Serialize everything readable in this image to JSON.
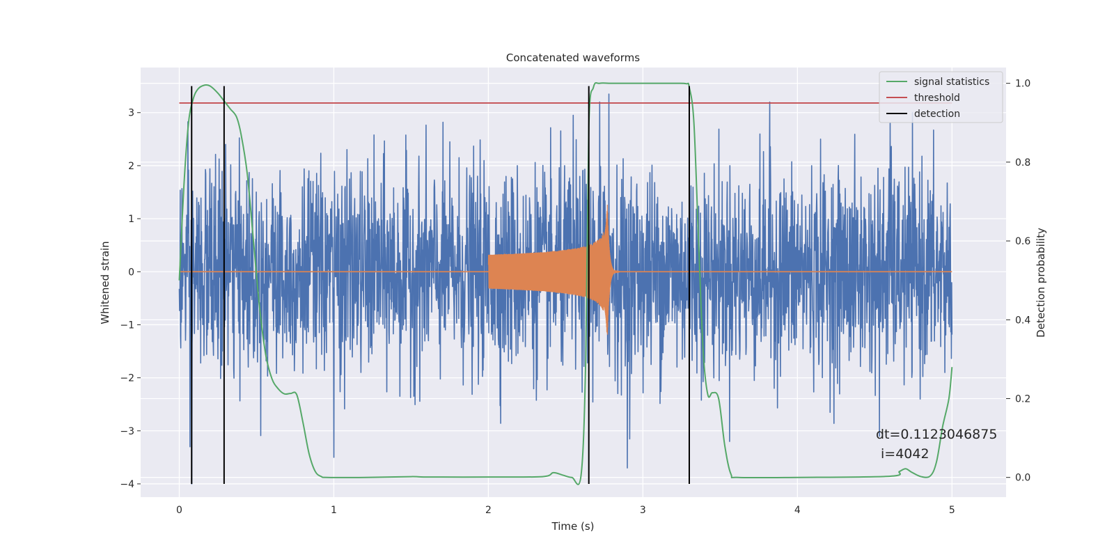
{
  "chart_data": {
    "type": "line",
    "title": "Concatenated waveforms",
    "xlabel": "Time (s)",
    "ylabel": "Whitened strain",
    "y2label": "Detection probability",
    "xlim": [
      -0.25,
      5.35
    ],
    "ylim": [
      -4.25,
      3.85
    ],
    "y2lim": [
      -0.05,
      1.04
    ],
    "xticks": [
      0,
      1,
      2,
      3,
      4,
      5
    ],
    "yticks": [
      -4,
      -3,
      -2,
      -1,
      0,
      1,
      2,
      3
    ],
    "y2ticks": [
      0.0,
      0.2,
      0.4,
      0.6,
      0.8,
      1.0
    ],
    "y2tick_labels": [
      "0.0",
      "0.2",
      "0.4",
      "0.6",
      "0.8",
      "1.0"
    ],
    "grid": true,
    "legend_position": "top-right",
    "colors": {
      "background": "#eaeaf2",
      "strain": "#4c72b0",
      "injection": "#dd8452",
      "signal_statistics": "#55a868",
      "threshold": "#c44e52",
      "detection": "#000000"
    },
    "series": [
      {
        "key": "strain",
        "axis": "left",
        "x_range": [
          0,
          5
        ],
        "rms": 0.95,
        "notable_peaks": [
          [
            0.08,
            -4.0
          ],
          [
            0.07,
            -3.3
          ],
          [
            0.3,
            2.4
          ],
          [
            1.0,
            -3.5
          ],
          [
            2.55,
            2.95
          ],
          [
            2.72,
            3.2
          ],
          [
            2.78,
            3.35
          ],
          [
            2.9,
            -3.7
          ],
          [
            3.82,
            3.2
          ],
          [
            4.53,
            -3.1
          ],
          [
            4.6,
            2.8
          ]
        ]
      },
      {
        "key": "injection",
        "axis": "left",
        "x_range": [
          2.0,
          2.8
        ],
        "chirp": {
          "start_time": 2.0,
          "merger_time": 2.77,
          "ringdown_end": 2.85,
          "start_amplitude": 0.32,
          "peak_amplitude": 1.3
        }
      },
      {
        "key": "signal_statistics",
        "name": "signal statistics",
        "axis": "right",
        "x": [
          0.0,
          0.03,
          0.06,
          0.09,
          0.12,
          0.16,
          0.2,
          0.25,
          0.29,
          0.33,
          0.37,
          0.4,
          0.44,
          0.48,
          0.52,
          0.56,
          0.6,
          0.64,
          0.68,
          0.72,
          0.76,
          0.8,
          0.84,
          0.88,
          0.92,
          0.96,
          1.2,
          1.5,
          1.6,
          2.0,
          2.35,
          2.42,
          2.48,
          2.54,
          2.6,
          2.63,
          2.65,
          2.68,
          2.72,
          2.8,
          3.0,
          3.2,
          3.28,
          3.3,
          3.33,
          3.36,
          3.39,
          3.42,
          3.45,
          3.49,
          3.53,
          3.57,
          3.62,
          4.0,
          4.6,
          4.66,
          4.7,
          4.74,
          4.8,
          4.86,
          4.9,
          4.94,
          4.98,
          5.0
        ],
        "values": [
          0.5,
          0.74,
          0.9,
          0.96,
          0.985,
          0.995,
          0.993,
          0.975,
          0.955,
          0.935,
          0.915,
          0.87,
          0.77,
          0.6,
          0.43,
          0.31,
          0.25,
          0.225,
          0.212,
          0.213,
          0.21,
          0.14,
          0.06,
          0.015,
          0.002,
          0.0,
          0.0,
          0.002,
          0.001,
          0.001,
          0.002,
          0.012,
          0.006,
          0.0,
          0.006,
          0.3,
          0.89,
          0.99,
          1.0,
          1.0,
          1.0,
          1.0,
          0.999,
          0.99,
          0.9,
          0.6,
          0.32,
          0.21,
          0.215,
          0.2,
          0.08,
          0.008,
          0.0,
          0.0,
          0.003,
          0.015,
          0.022,
          0.013,
          0.002,
          0.004,
          0.04,
          0.13,
          0.2,
          0.28
        ]
      },
      {
        "key": "threshold",
        "name": "threshold",
        "axis": "right",
        "x": [
          0,
          5
        ],
        "values": [
          0.95,
          0.95
        ]
      }
    ],
    "detections": {
      "name": "detection",
      "x": [
        0.08,
        0.29,
        2.65,
        3.3
      ],
      "y_range": [
        -4.0,
        3.5
      ]
    },
    "annotation": {
      "line1": "dt=0.1123046875",
      "line2": "i=4042",
      "x": 4.5,
      "y": -3.05
    }
  }
}
